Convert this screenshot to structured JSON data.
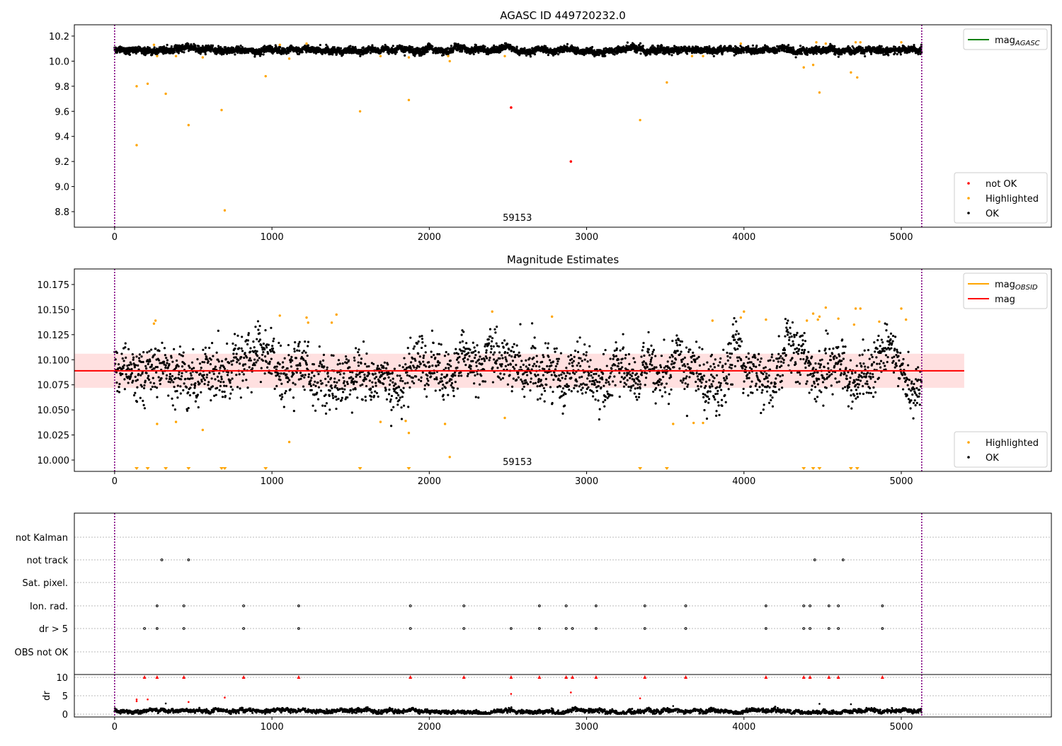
{
  "chart_data": [
    {
      "type": "scatter",
      "title": "AGASC ID 449720232.0",
      "xlim": [
        -256,
        5954
      ],
      "ylim": [
        8.676,
        10.29
      ],
      "xticks": [
        0,
        1000,
        2000,
        3000,
        4000,
        5000
      ],
      "yticks": [
        8.8,
        9.0,
        9.2,
        9.4,
        9.6,
        9.8,
        10.0,
        10.2
      ],
      "ytick_labels": [
        "8.8",
        "9.0",
        "9.2",
        "9.4",
        "9.6",
        "9.8",
        "10.0",
        "10.2"
      ],
      "annotation": "59153",
      "vlines": [
        0,
        5130
      ],
      "legend_top": [
        {
          "label": "mag",
          "sub": "AGASC",
          "color": "#008000"
        }
      ],
      "legend_bottom": [
        {
          "label": "not OK",
          "color": "#ff0000"
        },
        {
          "label": "Highlighted",
          "color": "#ffa500"
        },
        {
          "label": "OK",
          "color": "#000000"
        }
      ],
      "ok_series": {
        "n": 5130,
        "x_range": [
          0,
          5130
        ],
        "mean": 10.089,
        "sd": 0.016
      },
      "highlighted": [
        [
          140,
          9.33
        ],
        [
          140,
          9.8
        ],
        [
          210,
          9.82
        ],
        [
          325,
          9.74
        ],
        [
          470,
          9.49
        ],
        [
          680,
          9.61
        ],
        [
          700,
          8.81
        ],
        [
          960,
          9.88
        ],
        [
          1560,
          9.6
        ],
        [
          1870,
          9.69
        ],
        [
          3340,
          9.53
        ],
        [
          3510,
          9.83
        ],
        [
          4380,
          9.95
        ],
        [
          4440,
          9.97
        ],
        [
          4480,
          9.75
        ],
        [
          4680,
          9.91
        ],
        [
          4720,
          9.87
        ],
        [
          250,
          10.13
        ],
        [
          270,
          10.04
        ],
        [
          390,
          10.04
        ],
        [
          560,
          10.03
        ],
        [
          1050,
          10.13
        ],
        [
          1110,
          10.02
        ],
        [
          1220,
          10.14
        ],
        [
          1690,
          10.04
        ],
        [
          1870,
          10.03
        ],
        [
          2120,
          10.04
        ],
        [
          2130,
          10.0
        ],
        [
          2480,
          10.04
        ],
        [
          3670,
          10.04
        ],
        [
          3740,
          10.04
        ],
        [
          3980,
          10.14
        ],
        [
          4460,
          10.15
        ],
        [
          4520,
          10.14
        ],
        [
          4710,
          10.15
        ],
        [
          4740,
          10.15
        ],
        [
          5000,
          10.15
        ]
      ],
      "not_ok": [
        [
          2520,
          9.63
        ],
        [
          2900,
          9.2
        ]
      ]
    },
    {
      "type": "scatter",
      "title": "Magnitude Estimates",
      "xlim": [
        -256,
        5954
      ],
      "ylim": [
        9.9887,
        10.1905
      ],
      "xticks": [
        0,
        1000,
        2000,
        3000,
        4000,
        5000
      ],
      "yticks": [
        10.0,
        10.025,
        10.05,
        10.075,
        10.1,
        10.125,
        10.15,
        10.175
      ],
      "ytick_labels": [
        "10.000",
        "10.025",
        "10.050",
        "10.075",
        "10.100",
        "10.125",
        "10.150",
        "10.175"
      ],
      "annotation": "59153",
      "mag": 10.089,
      "mag_band": [
        10.072,
        10.106
      ],
      "band_x": [
        -256,
        5400
      ],
      "legend_top": [
        {
          "label": "mag",
          "sub": "OBSID",
          "color": "#ffa500"
        },
        {
          "label": "mag",
          "sub": "",
          "color": "#ff0000"
        }
      ],
      "legend_bottom": [
        {
          "label": "Highlighted",
          "color": "#ffa500"
        },
        {
          "label": "OK",
          "color": "#000000"
        }
      ],
      "ok_series": {
        "n": 2600,
        "x_range": [
          0,
          5130
        ],
        "mean": 10.089,
        "sd": 0.016
      },
      "highlighted": [
        [
          250,
          10.136
        ],
        [
          260,
          10.139
        ],
        [
          270,
          10.036
        ],
        [
          390,
          10.038
        ],
        [
          560,
          10.03
        ],
        [
          1050,
          10.144
        ],
        [
          1110,
          10.018
        ],
        [
          1220,
          10.142
        ],
        [
          1230,
          10.137
        ],
        [
          1380,
          10.137
        ],
        [
          1410,
          10.145
        ],
        [
          1690,
          10.038
        ],
        [
          1850,
          10.039
        ],
        [
          1870,
          10.027
        ],
        [
          2100,
          10.036
        ],
        [
          2130,
          10.003
        ],
        [
          2400,
          10.148
        ],
        [
          2480,
          10.042
        ],
        [
          2780,
          10.143
        ],
        [
          3550,
          10.036
        ],
        [
          3680,
          10.037
        ],
        [
          3740,
          10.037
        ],
        [
          3800,
          10.139
        ],
        [
          3980,
          10.142
        ],
        [
          4000,
          10.148
        ],
        [
          4140,
          10.14
        ],
        [
          4400,
          10.139
        ],
        [
          4440,
          10.146
        ],
        [
          4470,
          10.14
        ],
        [
          4480,
          10.143
        ],
        [
          4520,
          10.152
        ],
        [
          4600,
          10.141
        ],
        [
          4700,
          10.135
        ],
        [
          4710,
          10.151
        ],
        [
          4740,
          10.151
        ],
        [
          4860,
          10.138
        ],
        [
          5000,
          10.151
        ],
        [
          5030,
          10.14
        ]
      ],
      "below_range": [
        140,
        210,
        325,
        470,
        680,
        700,
        960,
        1560,
        1870,
        3340,
        3510,
        4380,
        4440,
        4480,
        4680,
        4720
      ]
    },
    {
      "type": "scatter",
      "title": "",
      "xlim": [
        -256,
        5954
      ],
      "xticks": [
        0,
        1000,
        2000,
        3000,
        4000,
        5000
      ],
      "categories": [
        "not Kalman",
        "not track",
        "Sat. pixel.",
        "Ion. rad.",
        "dr > 5",
        "OBS not OK"
      ],
      "flags": {
        "not track": [
          300,
          470,
          4450,
          4630
        ],
        "Ion. rad.": [
          270,
          440,
          820,
          1170,
          1880,
          2220,
          2700,
          2870,
          3060,
          3370,
          3630,
          4140,
          4380,
          4420,
          4540,
          4600,
          4880
        ],
        "dr > 5": [
          190,
          270,
          440,
          820,
          1170,
          1880,
          2220,
          2520,
          2700,
          2870,
          2910,
          3060,
          3370,
          3630,
          4140,
          4380,
          4420,
          4540,
          4600,
          4880
        ]
      },
      "dr_ylabel": "dr",
      "dr_yticks": [
        0,
        5,
        10
      ],
      "dr_ylim": [
        -0.5,
        10.5
      ],
      "dr_red": [
        [
          140,
          3.5
        ],
        [
          140,
          4.0
        ],
        [
          210,
          4.0
        ],
        [
          470,
          3.3
        ],
        [
          700,
          4.5
        ],
        [
          2520,
          5.5
        ],
        [
          2900,
          5.9
        ],
        [
          3340,
          4.3
        ]
      ],
      "dr_black": [
        [
          325,
          2.9
        ],
        [
          3550,
          2.2
        ],
        [
          4480,
          2.8
        ],
        [
          4680,
          2.7
        ]
      ]
    }
  ]
}
